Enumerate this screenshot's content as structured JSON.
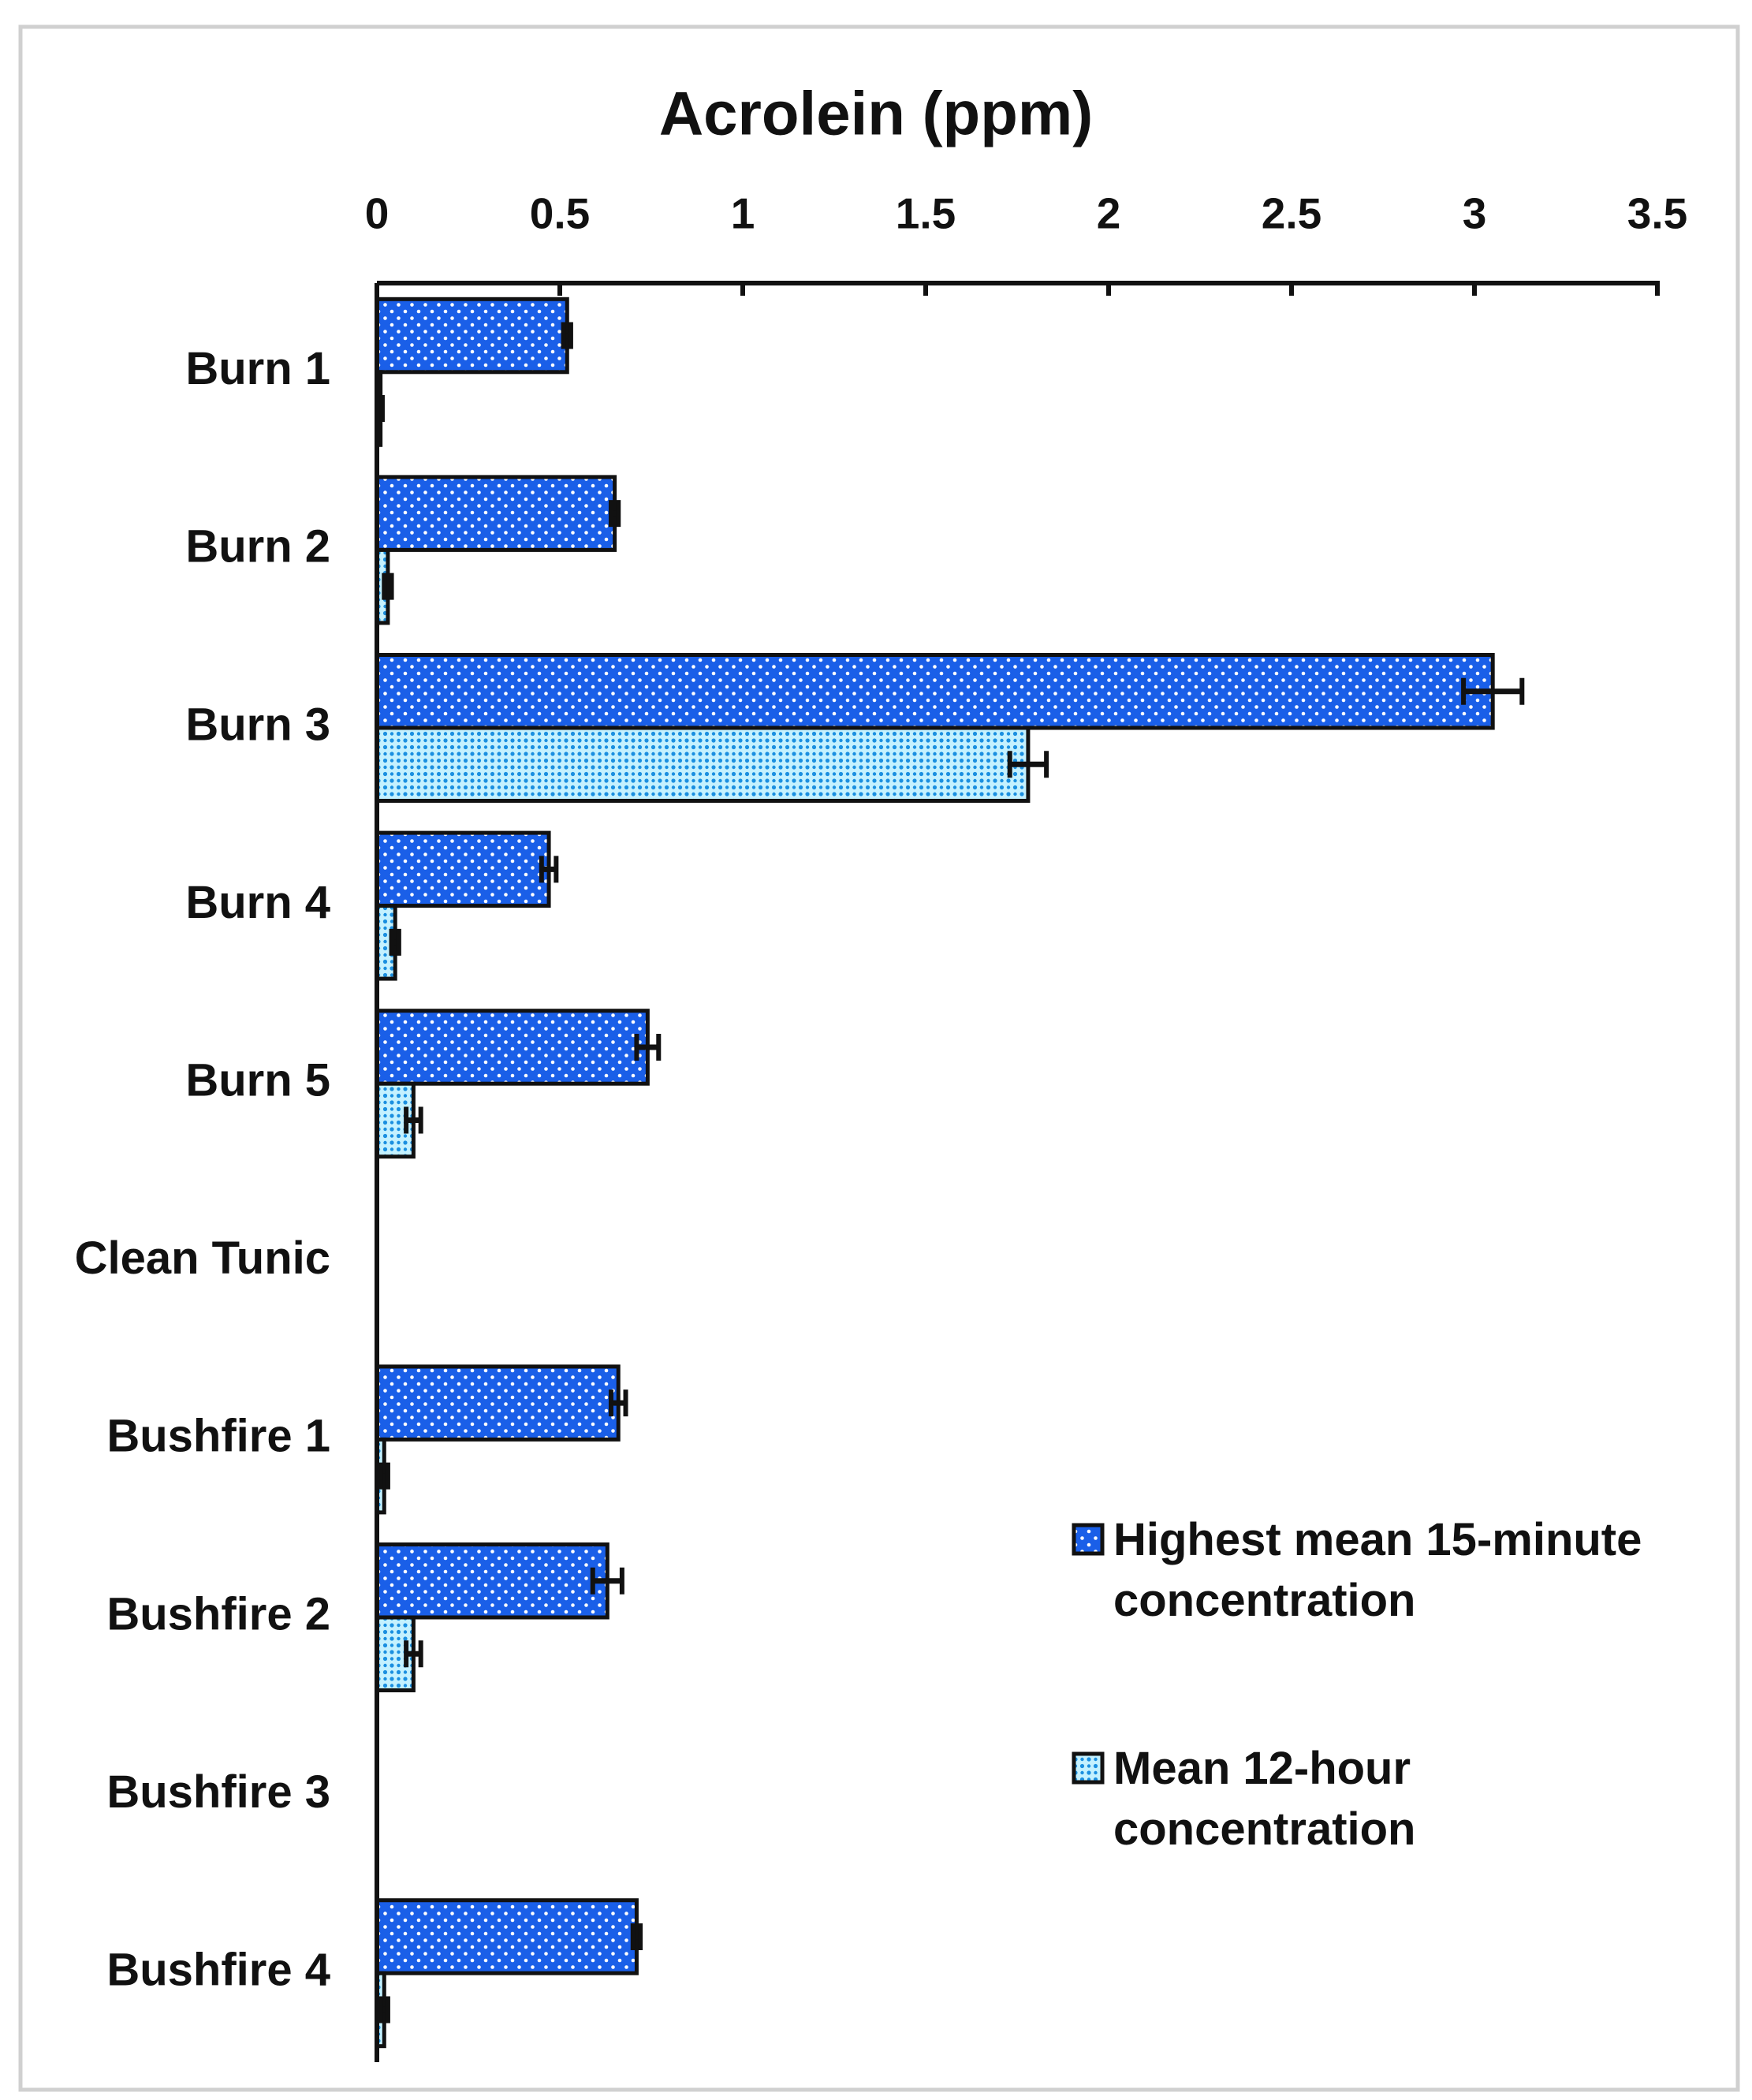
{
  "chart_data": {
    "type": "bar",
    "orientation": "horizontal",
    "title": "Acrolein (ppm)",
    "categories": [
      "Burn 1",
      "Burn 2",
      "Burn 3",
      "Burn 4",
      "Burn 5",
      "Clean Tunic",
      "Bushfire 1",
      "Bushfire 2",
      "Bushfire 3",
      "Bushfire 4"
    ],
    "series": [
      {
        "name": "Highest mean 15-minute concentration",
        "color": "#1a5fe8",
        "values": [
          0.52,
          0.65,
          3.05,
          0.47,
          0.74,
          0,
          0.66,
          0.63,
          0,
          0.71
        ],
        "errors": [
          0.01,
          0.01,
          0.08,
          0.02,
          0.03,
          0,
          0.02,
          0.04,
          0,
          0.01
        ]
      },
      {
        "name": "Mean 12-hour concentration",
        "color": "#c4f1ff",
        "values": [
          0.01,
          0.03,
          1.78,
          0.05,
          0.1,
          0,
          0.02,
          0.1,
          0,
          0.02
        ],
        "errors": [
          0.005,
          0.01,
          0.05,
          0.01,
          0.02,
          0,
          0.01,
          0.02,
          0,
          0.01
        ]
      }
    ],
    "xlim": [
      0,
      3.5
    ],
    "xticks": [
      0,
      0.5,
      1,
      1.5,
      2,
      2.5,
      3,
      3.5
    ],
    "legend": "lower right",
    "grid": false
  }
}
